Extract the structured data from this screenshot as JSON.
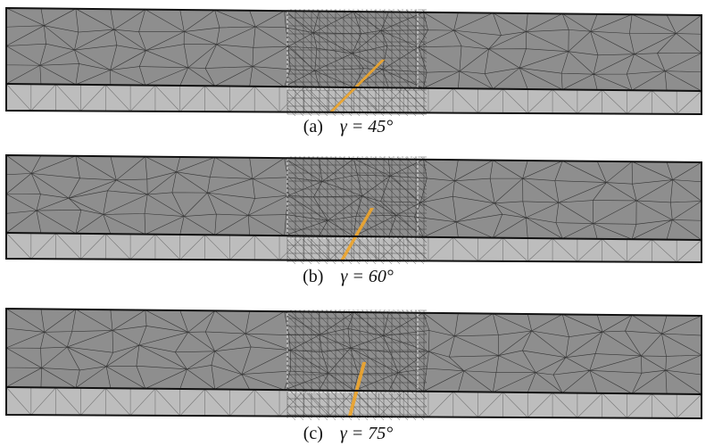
{
  "panels": [
    {
      "id": "a",
      "label": "(a)",
      "equation": "γ = 45°",
      "crack_angle_deg": 45
    },
    {
      "id": "b",
      "label": "(b)",
      "equation": "γ = 60°",
      "crack_angle_deg": 60
    },
    {
      "id": "c",
      "label": "(c)",
      "equation": "γ = 75°",
      "crack_angle_deg": 75
    }
  ],
  "colors": {
    "upper_layer": "#8e8e8e",
    "lower_layer": "#bdbdbd",
    "mesh_line": "#1a1a1a",
    "crack": "#f0a52a",
    "outline": "#111111"
  }
}
